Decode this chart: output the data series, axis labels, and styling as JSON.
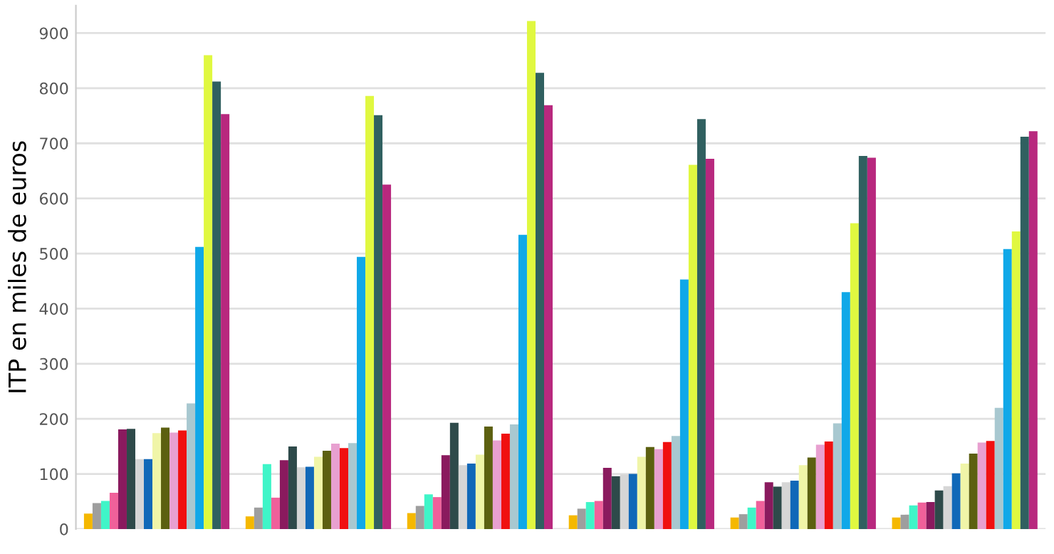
{
  "chart_data": {
    "type": "bar",
    "ylabel": "ITP en miles de euros",
    "categories": [
      null,
      null,
      null,
      null,
      null,
      null
    ],
    "ylim": [
      0,
      950
    ],
    "yticks": [
      0,
      100,
      200,
      300,
      400,
      500,
      600,
      700,
      800,
      900
    ],
    "grid": "y",
    "series": [
      {
        "color": "#f5b800",
        "values": [
          28,
          23,
          29,
          25,
          21,
          21
        ]
      },
      {
        "color": "#9e9e9e",
        "values": [
          47,
          39,
          42,
          37,
          27,
          26
        ]
      },
      {
        "color": "#3ff5c8",
        "values": [
          51,
          118,
          63,
          49,
          39,
          43
        ]
      },
      {
        "color": "#f0609a",
        "values": [
          66,
          57,
          58,
          51,
          51,
          48
        ]
      },
      {
        "color": "#8a1a5e",
        "values": [
          181,
          125,
          134,
          111,
          85,
          49
        ]
      },
      {
        "color": "#2e4a4a",
        "values": [
          182,
          150,
          193,
          96,
          77,
          70
        ]
      },
      {
        "color": "#d6d6d6",
        "values": [
          127,
          112,
          116,
          99,
          85,
          78
        ]
      },
      {
        "color": "#1068b8",
        "values": [
          127,
          113,
          119,
          100,
          88,
          101
        ]
      },
      {
        "color": "#f0f5a8",
        "values": [
          174,
          131,
          135,
          131,
          116,
          119
        ]
      },
      {
        "color": "#5c6010",
        "values": [
          184,
          142,
          186,
          149,
          130,
          137
        ]
      },
      {
        "color": "#e8a0d0",
        "values": [
          175,
          155,
          161,
          145,
          153,
          157
        ]
      },
      {
        "color": "#f01010",
        "values": [
          179,
          147,
          173,
          158,
          159,
          160
        ]
      },
      {
        "color": "#a8c8d0",
        "values": [
          228,
          156,
          190,
          169,
          192,
          220
        ]
      },
      {
        "color": "#10a8e8",
        "values": [
          512,
          494,
          534,
          453,
          430,
          508
        ]
      },
      {
        "color": "#e0f840",
        "values": [
          860,
          786,
          922,
          661,
          555,
          540
        ]
      },
      {
        "color": "#306060",
        "values": [
          812,
          751,
          828,
          744,
          677,
          712
        ]
      },
      {
        "color": "#b8287e",
        "values": [
          753,
          625,
          769,
          672,
          674,
          722
        ]
      }
    ]
  }
}
